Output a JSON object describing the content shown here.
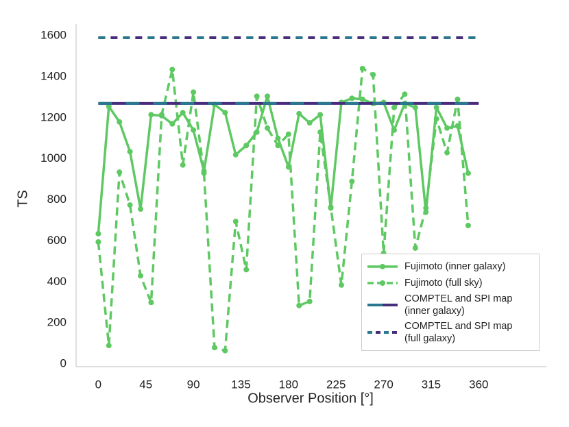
{
  "chart_data": {
    "type": "line",
    "xlabel": "Observer Position [°]",
    "ylabel": "TS",
    "xlim": [
      -21,
      424
    ],
    "ylim": [
      -13,
      1657
    ],
    "xticks": [
      0,
      45,
      90,
      135,
      180,
      225,
      270,
      315,
      360
    ],
    "yticks": [
      0,
      200,
      400,
      600,
      800,
      1000,
      1200,
      1400,
      1600
    ],
    "grid": false,
    "legend": "lower right",
    "series": [
      {
        "name": "Fujimoto (inner galaxy)",
        "color": "#5ec962",
        "dashed": false,
        "markers": true,
        "x": [
          0,
          10,
          20,
          30,
          40,
          50,
          60,
          70,
          80,
          90,
          100,
          110,
          120,
          130,
          140,
          150,
          160,
          170,
          180,
          190,
          200,
          210,
          220,
          230,
          240,
          250,
          260,
          270,
          280,
          290,
          300,
          310,
          320,
          330,
          340,
          350
        ],
        "values": [
          635,
          1255,
          1180,
          1035,
          755,
          1215,
          1210,
          1170,
          1225,
          1140,
          940,
          1265,
          1225,
          1020,
          1065,
          1130,
          1305,
          1100,
          960,
          1220,
          1175,
          1215,
          760,
          1275,
          1295,
          1290,
          1270,
          1275,
          1140,
          1270,
          1250,
          740,
          1250,
          1150,
          1160,
          930
        ]
      },
      {
        "name": "Fujimoto (full sky)",
        "color": "#5ec962",
        "dashed": true,
        "markers": true,
        "x": [
          0,
          10,
          20,
          30,
          40,
          50,
          60,
          70,
          80,
          90,
          100,
          110,
          120,
          130,
          140,
          150,
          160,
          170,
          180,
          190,
          200,
          210,
          220,
          230,
          240,
          250,
          260,
          270,
          280,
          290,
          300,
          310,
          320,
          330,
          340,
          350
        ],
        "values": [
          595,
          90,
          935,
          775,
          430,
          300,
          1215,
          1435,
          970,
          1325,
          930,
          80,
          65,
          695,
          460,
          1305,
          1150,
          1065,
          1120,
          285,
          305,
          1130,
          765,
          385,
          890,
          1440,
          1410,
          540,
          1250,
          1315,
          565,
          760,
          1195,
          1030,
          1290,
          675
        ]
      },
      {
        "name": "COMPTEL and SPI map (inner galaxy)",
        "colors": [
          "#472d7b",
          "#2a788e"
        ],
        "dashed": false,
        "markers": false,
        "x": [
          0,
          360
        ],
        "values": [
          1270,
          1270
        ]
      },
      {
        "name": "COMPTEL and SPI map (full galaxy)",
        "colors": [
          "#472d7b",
          "#2a788e"
        ],
        "dashed": true,
        "markers": false,
        "x": [
          0,
          360
        ],
        "values": [
          1590,
          1590
        ]
      }
    ]
  }
}
